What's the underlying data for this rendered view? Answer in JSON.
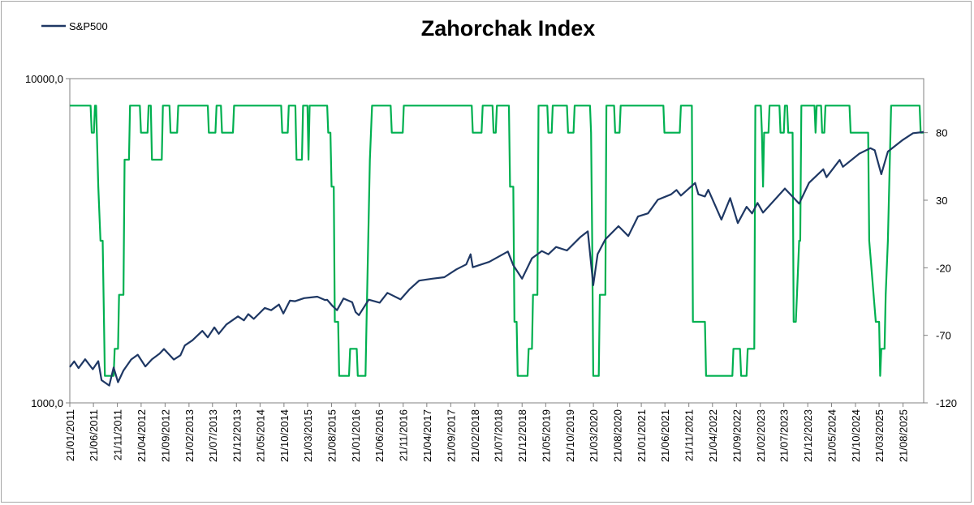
{
  "chart_data": {
    "type": "line",
    "title": "Zahorchak Index",
    "legend": {
      "position": "top-left",
      "entries": [
        "S&P500"
      ]
    },
    "grid": false,
    "y_left": {
      "scale": "log",
      "range": [
        1000,
        10000
      ],
      "tick_labels": [
        "10000,0",
        "1000,0"
      ]
    },
    "y_right": {
      "scale": "linear",
      "range": [
        -120,
        120
      ],
      "tick_labels": [
        "80",
        "30",
        "-20",
        "-70",
        "-120"
      ]
    },
    "x_range": [
      "2011-01-21",
      "2025-12-31"
    ],
    "x_tick_labels": [
      "21/01/2011",
      "21/06/2011",
      "21/11/2011",
      "21/04/2012",
      "21/09/2012",
      "21/02/2013",
      "21/07/2013",
      "21/12/2013",
      "21/05/2014",
      "21/10/2014",
      "21/03/2015",
      "21/08/2015",
      "21/01/2016",
      "21/06/2016",
      "21/11/2016",
      "21/04/2017",
      "21/09/2017",
      "21/02/2018",
      "21/07/2018",
      "21/12/2018",
      "21/05/2019",
      "21/10/2019",
      "21/03/2020",
      "21/08/2020",
      "21/01/2021",
      "21/06/2021",
      "21/11/2021",
      "21/04/2022",
      "21/09/2022",
      "21/02/2023",
      "21/07/2023",
      "21/12/2023",
      "21/05/2024",
      "21/10/2024",
      "21/03/2025",
      "21/08/2025"
    ],
    "series": [
      {
        "name": "S&P500",
        "axis": "left",
        "color": "#1f3864",
        "points": [
          [
            "2011-01-21",
            1290
          ],
          [
            "2011-02-18",
            1343
          ],
          [
            "2011-03-18",
            1280
          ],
          [
            "2011-04-29",
            1363
          ],
          [
            "2011-06-17",
            1270
          ],
          [
            "2011-07-22",
            1345
          ],
          [
            "2011-08-12",
            1175
          ],
          [
            "2011-09-30",
            1131
          ],
          [
            "2011-10-28",
            1285
          ],
          [
            "2011-11-25",
            1158
          ],
          [
            "2011-12-30",
            1258
          ],
          [
            "2012-02-17",
            1361
          ],
          [
            "2012-03-30",
            1408
          ],
          [
            "2012-05-18",
            1295
          ],
          [
            "2012-06-29",
            1362
          ],
          [
            "2012-08-17",
            1418
          ],
          [
            "2012-09-14",
            1466
          ],
          [
            "2012-11-16",
            1360
          ],
          [
            "2012-12-28",
            1402
          ],
          [
            "2013-01-25",
            1503
          ],
          [
            "2013-03-15",
            1560
          ],
          [
            "2013-05-17",
            1667
          ],
          [
            "2013-06-21",
            1592
          ],
          [
            "2013-08-02",
            1709
          ],
          [
            "2013-08-30",
            1633
          ],
          [
            "2013-10-18",
            1745
          ],
          [
            "2013-12-31",
            1848
          ],
          [
            "2014-02-07",
            1797
          ],
          [
            "2014-03-07",
            1878
          ],
          [
            "2014-04-11",
            1816
          ],
          [
            "2014-06-20",
            1962
          ],
          [
            "2014-07-31",
            1931
          ],
          [
            "2014-09-19",
            2010
          ],
          [
            "2014-10-17",
            1886
          ],
          [
            "2014-11-28",
            2067
          ],
          [
            "2014-12-31",
            2058
          ],
          [
            "2015-02-27",
            2104
          ],
          [
            "2015-05-22",
            2126
          ],
          [
            "2015-07-10",
            2076
          ],
          [
            "2015-07-24",
            2079
          ],
          [
            "2015-08-28",
            1988
          ],
          [
            "2015-09-25",
            1931
          ],
          [
            "2015-11-06",
            2099
          ],
          [
            "2015-12-31",
            2043
          ],
          [
            "2016-01-22",
            1906
          ],
          [
            "2016-02-12",
            1864
          ],
          [
            "2016-04-15",
            2081
          ],
          [
            "2016-06-24",
            2037
          ],
          [
            "2016-08-12",
            2184
          ],
          [
            "2016-11-04",
            2085
          ],
          [
            "2016-12-30",
            2238
          ],
          [
            "2017-03-03",
            2383
          ],
          [
            "2017-05-26",
            2415
          ],
          [
            "2017-08-11",
            2441
          ],
          [
            "2017-10-27",
            2581
          ],
          [
            "2017-12-29",
            2673
          ],
          [
            "2018-01-26",
            2872
          ],
          [
            "2018-02-09",
            2619
          ],
          [
            "2018-05-25",
            2721
          ],
          [
            "2018-09-21",
            2929
          ],
          [
            "2018-10-26",
            2658
          ],
          [
            "2018-12-21",
            2416
          ],
          [
            "2019-02-22",
            2792
          ],
          [
            "2019-04-26",
            2939
          ],
          [
            "2019-06-07",
            2873
          ],
          [
            "2019-07-26",
            3025
          ],
          [
            "2019-10-04",
            2952
          ],
          [
            "2019-12-27",
            3240
          ],
          [
            "2020-02-14",
            3380
          ],
          [
            "2020-03-20",
            2305
          ],
          [
            "2020-04-17",
            2875
          ],
          [
            "2020-06-05",
            3194
          ],
          [
            "2020-08-28",
            3508
          ],
          [
            "2020-10-30",
            3270
          ],
          [
            "2020-12-31",
            3756
          ],
          [
            "2021-03-05",
            3841
          ],
          [
            "2021-05-07",
            4232
          ],
          [
            "2021-07-30",
            4395
          ],
          [
            "2021-09-03",
            4535
          ],
          [
            "2021-10-01",
            4357
          ],
          [
            "2021-12-31",
            4766
          ],
          [
            "2022-01-21",
            4398
          ],
          [
            "2022-03-04",
            4329
          ],
          [
            "2022-03-25",
            4543
          ],
          [
            "2022-06-17",
            3675
          ],
          [
            "2022-08-12",
            4280
          ],
          [
            "2022-09-30",
            3586
          ],
          [
            "2022-11-25",
            4026
          ],
          [
            "2022-12-30",
            3839
          ],
          [
            "2023-02-03",
            4136
          ],
          [
            "2023-03-10",
            3861
          ],
          [
            "2023-07-28",
            4582
          ],
          [
            "2023-10-27",
            4117
          ],
          [
            "2023-12-29",
            4770
          ],
          [
            "2024-03-29",
            5254
          ],
          [
            "2024-04-19",
            4967
          ],
          [
            "2024-07-12",
            5615
          ],
          [
            "2024-08-02",
            5346
          ],
          [
            "2024-11-15",
            5870
          ],
          [
            "2025-01-24",
            6101
          ],
          [
            "2025-02-21",
            6013
          ],
          [
            "2025-04-04",
            5074
          ],
          [
            "2025-05-16",
            5958
          ],
          [
            "2025-08-15",
            6450
          ],
          [
            "2025-10-24",
            6790
          ],
          [
            "2025-12-19",
            6834
          ],
          [
            "2025-12-31",
            6850
          ]
        ]
      },
      {
        "axis": "right",
        "color": "#00b050",
        "points": [
          [
            "2011-01-21",
            100
          ],
          [
            "2011-06-03",
            100
          ],
          [
            "2011-06-10",
            80
          ],
          [
            "2011-06-24",
            80
          ],
          [
            "2011-07-01",
            100
          ],
          [
            "2011-07-08",
            100
          ],
          [
            "2011-07-22",
            40
          ],
          [
            "2011-08-05",
            0
          ],
          [
            "2011-08-19",
            0
          ],
          [
            "2011-09-02",
            -100
          ],
          [
            "2011-10-28",
            -100
          ],
          [
            "2011-11-04",
            -80
          ],
          [
            "2011-11-25",
            -80
          ],
          [
            "2011-12-02",
            -40
          ],
          [
            "2011-12-30",
            -40
          ],
          [
            "2012-01-06",
            60
          ],
          [
            "2012-02-03",
            60
          ],
          [
            "2012-02-10",
            100
          ],
          [
            "2012-04-13",
            100
          ],
          [
            "2012-04-20",
            80
          ],
          [
            "2012-06-01",
            80
          ],
          [
            "2012-06-08",
            100
          ],
          [
            "2012-06-22",
            100
          ],
          [
            "2012-06-29",
            60
          ],
          [
            "2012-08-31",
            60
          ],
          [
            "2012-09-07",
            100
          ],
          [
            "2012-10-19",
            100
          ],
          [
            "2012-10-26",
            80
          ],
          [
            "2012-12-07",
            80
          ],
          [
            "2012-12-14",
            100
          ],
          [
            "2013-06-21",
            100
          ],
          [
            "2013-06-28",
            80
          ],
          [
            "2013-08-09",
            80
          ],
          [
            "2013-08-16",
            100
          ],
          [
            "2013-09-13",
            100
          ],
          [
            "2013-09-20",
            80
          ],
          [
            "2013-11-29",
            80
          ],
          [
            "2013-12-06",
            100
          ],
          [
            "2014-10-03",
            100
          ],
          [
            "2014-10-10",
            80
          ],
          [
            "2014-11-14",
            80
          ],
          [
            "2014-11-21",
            100
          ],
          [
            "2015-01-02",
            100
          ],
          [
            "2015-01-09",
            60
          ],
          [
            "2015-02-13",
            60
          ],
          [
            "2015-02-20",
            100
          ],
          [
            "2015-03-20",
            100
          ],
          [
            "2015-03-27",
            60
          ],
          [
            "2015-04-03",
            100
          ],
          [
            "2015-07-24",
            100
          ],
          [
            "2015-07-31",
            80
          ],
          [
            "2015-08-14",
            80
          ],
          [
            "2015-08-21",
            40
          ],
          [
            "2015-09-04",
            40
          ],
          [
            "2015-09-11",
            -60
          ],
          [
            "2015-10-02",
            -60
          ],
          [
            "2015-10-09",
            -100
          ],
          [
            "2015-12-11",
            -100
          ],
          [
            "2015-12-18",
            -80
          ],
          [
            "2016-01-29",
            -80
          ],
          [
            "2016-02-05",
            -100
          ],
          [
            "2016-03-25",
            -100
          ],
          [
            "2016-04-01",
            -60
          ],
          [
            "2016-04-22",
            60
          ],
          [
            "2016-05-06",
            100
          ],
          [
            "2016-09-02",
            100
          ],
          [
            "2016-09-09",
            80
          ],
          [
            "2016-11-18",
            80
          ],
          [
            "2016-11-25",
            100
          ],
          [
            "2018-02-02",
            100
          ],
          [
            "2018-02-09",
            80
          ],
          [
            "2018-04-06",
            80
          ],
          [
            "2018-04-13",
            100
          ],
          [
            "2018-06-15",
            100
          ],
          [
            "2018-06-22",
            80
          ],
          [
            "2018-07-06",
            80
          ],
          [
            "2018-07-13",
            100
          ],
          [
            "2018-09-28",
            100
          ],
          [
            "2018-10-05",
            40
          ],
          [
            "2018-10-26",
            40
          ],
          [
            "2018-11-02",
            -60
          ],
          [
            "2018-11-16",
            -60
          ],
          [
            "2018-11-23",
            -100
          ],
          [
            "2019-01-25",
            -100
          ],
          [
            "2019-02-01",
            -80
          ],
          [
            "2019-02-22",
            -80
          ],
          [
            "2019-03-01",
            -40
          ],
          [
            "2019-03-29",
            -40
          ],
          [
            "2019-04-05",
            100
          ],
          [
            "2019-05-31",
            100
          ],
          [
            "2019-06-07",
            80
          ],
          [
            "2019-06-28",
            80
          ],
          [
            "2019-07-05",
            100
          ],
          [
            "2019-10-04",
            100
          ],
          [
            "2019-10-11",
            80
          ],
          [
            "2019-11-15",
            80
          ],
          [
            "2019-11-22",
            100
          ],
          [
            "2020-02-28",
            100
          ],
          [
            "2020-03-06",
            80
          ],
          [
            "2020-03-13",
            0
          ],
          [
            "2020-03-20",
            -100
          ],
          [
            "2020-04-24",
            -100
          ],
          [
            "2020-05-01",
            -40
          ],
          [
            "2020-06-05",
            -40
          ],
          [
            "2020-06-12",
            100
          ],
          [
            "2020-07-31",
            100
          ],
          [
            "2020-08-07",
            80
          ],
          [
            "2020-09-04",
            80
          ],
          [
            "2020-09-11",
            100
          ],
          [
            "2021-06-11",
            100
          ],
          [
            "2021-06-18",
            80
          ],
          [
            "2021-09-24",
            80
          ],
          [
            "2021-10-01",
            100
          ],
          [
            "2021-12-10",
            100
          ],
          [
            "2021-12-17",
            -60
          ],
          [
            "2022-03-04",
            -60
          ],
          [
            "2022-03-11",
            -100
          ],
          [
            "2022-08-26",
            -100
          ],
          [
            "2022-09-02",
            -80
          ],
          [
            "2022-10-14",
            -80
          ],
          [
            "2022-10-21",
            -100
          ],
          [
            "2022-11-25",
            -100
          ],
          [
            "2022-12-02",
            -80
          ],
          [
            "2023-01-13",
            -80
          ],
          [
            "2023-01-20",
            100
          ],
          [
            "2023-02-24",
            100
          ],
          [
            "2023-03-03",
            80
          ],
          [
            "2023-03-10",
            40
          ],
          [
            "2023-03-17",
            80
          ],
          [
            "2023-04-14",
            80
          ],
          [
            "2023-04-21",
            100
          ],
          [
            "2023-06-23",
            100
          ],
          [
            "2023-06-30",
            80
          ],
          [
            "2023-07-21",
            80
          ],
          [
            "2023-07-28",
            100
          ],
          [
            "2023-08-11",
            100
          ],
          [
            "2023-08-18",
            80
          ],
          [
            "2023-09-15",
            80
          ],
          [
            "2023-09-22",
            -60
          ],
          [
            "2023-10-06",
            -60
          ],
          [
            "2023-10-13",
            -40
          ],
          [
            "2023-10-27",
            0
          ],
          [
            "2023-11-03",
            0
          ],
          [
            "2023-11-10",
            100
          ],
          [
            "2024-02-02",
            100
          ],
          [
            "2024-02-09",
            80
          ],
          [
            "2024-02-16",
            100
          ],
          [
            "2024-03-15",
            100
          ],
          [
            "2024-03-22",
            80
          ],
          [
            "2024-04-05",
            80
          ],
          [
            "2024-04-12",
            100
          ],
          [
            "2024-09-13",
            100
          ],
          [
            "2024-09-20",
            80
          ],
          [
            "2025-01-10",
            80
          ],
          [
            "2025-01-17",
            0
          ],
          [
            "2025-02-28",
            -60
          ],
          [
            "2025-03-21",
            -60
          ],
          [
            "2025-03-28",
            -100
          ],
          [
            "2025-04-04",
            -80
          ],
          [
            "2025-04-25",
            -80
          ],
          [
            "2025-05-02",
            -40
          ],
          [
            "2025-05-16",
            0
          ],
          [
            "2025-06-06",
            100
          ],
          [
            "2025-12-05",
            100
          ],
          [
            "2025-12-12",
            80
          ],
          [
            "2025-12-31",
            80
          ]
        ]
      }
    ]
  }
}
